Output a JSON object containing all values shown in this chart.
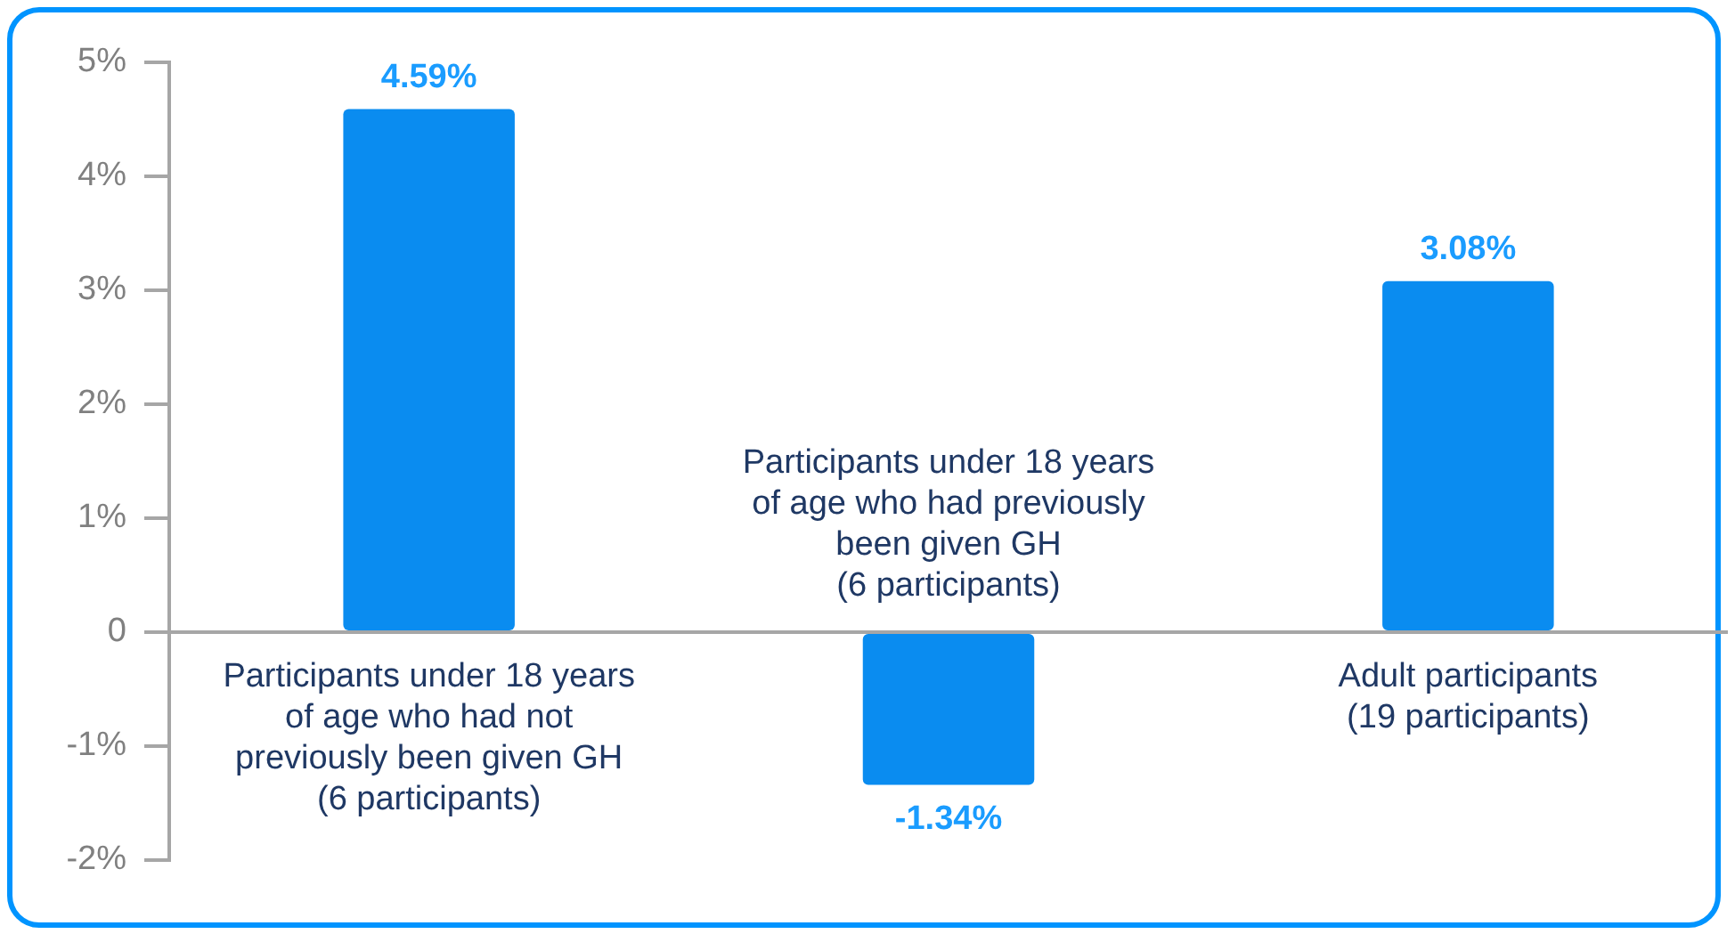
{
  "chart_data": {
    "type": "bar",
    "categories": [
      "Participants under 18 years of age who had not previously been given GH (6 participants)",
      "Participants under 18 years of age who had previously been given GH (6 participants)",
      "Adult participants (19 participants)"
    ],
    "values": [
      4.59,
      -1.34,
      3.08
    ],
    "value_labels": [
      "4.59%",
      "-1.34%",
      "3.08%"
    ],
    "color": "#0a8cf0",
    "ylim": [
      -2,
      5
    ],
    "yticks": [
      {
        "value": -2,
        "label": "-2%"
      },
      {
        "value": -1,
        "label": "-1%"
      },
      0,
      {
        "value": 1,
        "label": "1%"
      },
      {
        "value": 2,
        "label": "2%"
      },
      {
        "value": 3,
        "label": "3%"
      },
      {
        "value": 4,
        "label": "4%"
      },
      {
        "value": 5,
        "label": "5%"
      }
    ],
    "grid": false,
    "legend": false
  }
}
